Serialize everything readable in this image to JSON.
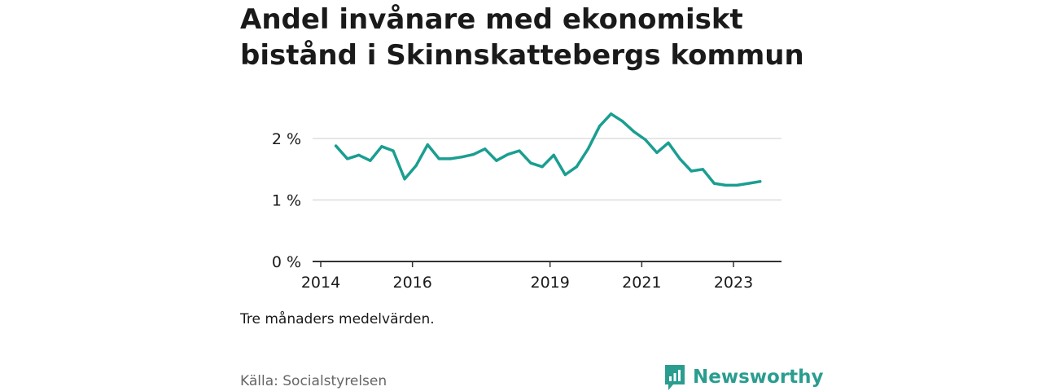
{
  "header": {
    "title": "Andel invånare med ekonomiskt bistånd i Skinnskattebergs kommun"
  },
  "footer": {
    "note": "Tre månaders medelvärden.",
    "source": "Källa: Socialstyrelsen",
    "brand": "Newsworthy"
  },
  "colors": {
    "line": "#1a9e91",
    "brand": "#2a9d8f",
    "grid": "#dddddd",
    "axis": "#333333"
  },
  "chart_data": {
    "type": "line",
    "title": "Andel invånare med ekonomiskt bistånd i Skinnskattebergs kommun",
    "xlabel": "",
    "ylabel": "",
    "xlim": [
      2014,
      2024.5
    ],
    "ylim": [
      0,
      2.5
    ],
    "yticks": [
      {
        "value": 0,
        "label": "0 %"
      },
      {
        "value": 1,
        "label": "1 %"
      },
      {
        "value": 2,
        "label": "2 %"
      }
    ],
    "xticks": [
      {
        "value": 2014,
        "label": "2014"
      },
      {
        "value": 2016,
        "label": "2016"
      },
      {
        "value": 2019,
        "label": "2019"
      },
      {
        "value": 2021,
        "label": "2021"
      },
      {
        "value": 2023,
        "label": "2023"
      }
    ],
    "grid": true,
    "series": [
      {
        "values": [
          {
            "x": 2014.33,
            "y": 1.88
          },
          {
            "x": 2014.58,
            "y": 1.67
          },
          {
            "x": 2014.83,
            "y": 1.73
          },
          {
            "x": 2015.08,
            "y": 1.64
          },
          {
            "x": 2015.33,
            "y": 1.87
          },
          {
            "x": 2015.58,
            "y": 1.8
          },
          {
            "x": 2015.83,
            "y": 1.34
          },
          {
            "x": 2016.08,
            "y": 1.56
          },
          {
            "x": 2016.33,
            "y": 1.9
          },
          {
            "x": 2016.58,
            "y": 1.67
          },
          {
            "x": 2016.83,
            "y": 1.67
          },
          {
            "x": 2017.08,
            "y": 1.7
          },
          {
            "x": 2017.33,
            "y": 1.74
          },
          {
            "x": 2017.58,
            "y": 1.83
          },
          {
            "x": 2017.83,
            "y": 1.64
          },
          {
            "x": 2018.08,
            "y": 1.74
          },
          {
            "x": 2018.33,
            "y": 1.8
          },
          {
            "x": 2018.58,
            "y": 1.6
          },
          {
            "x": 2018.83,
            "y": 1.54
          },
          {
            "x": 2019.08,
            "y": 1.73
          },
          {
            "x": 2019.33,
            "y": 1.41
          },
          {
            "x": 2019.58,
            "y": 1.54
          },
          {
            "x": 2019.83,
            "y": 1.83
          },
          {
            "x": 2020.08,
            "y": 2.2
          },
          {
            "x": 2020.33,
            "y": 2.4
          },
          {
            "x": 2020.58,
            "y": 2.28
          },
          {
            "x": 2020.83,
            "y": 2.11
          },
          {
            "x": 2021.08,
            "y": 1.98
          },
          {
            "x": 2021.33,
            "y": 1.77
          },
          {
            "x": 2021.58,
            "y": 1.93
          },
          {
            "x": 2021.83,
            "y": 1.67
          },
          {
            "x": 2022.08,
            "y": 1.47
          },
          {
            "x": 2022.33,
            "y": 1.5
          },
          {
            "x": 2022.58,
            "y": 1.27
          },
          {
            "x": 2022.83,
            "y": 1.24
          },
          {
            "x": 2023.08,
            "y": 1.24
          },
          {
            "x": 2023.33,
            "y": 1.27
          },
          {
            "x": 2023.58,
            "y": 1.3
          }
        ]
      }
    ]
  }
}
